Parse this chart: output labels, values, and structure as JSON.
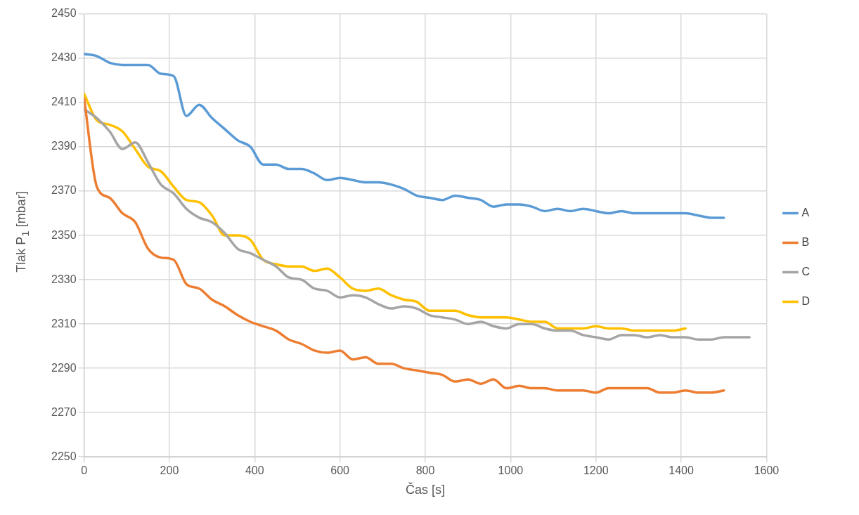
{
  "chart_data": {
    "type": "line",
    "xlabel": "Čas [s]",
    "ylabel": "Tlak P$_{1}$ [mbar]",
    "x": [
      0,
      30,
      60,
      90,
      120,
      150,
      180,
      210,
      240,
      270,
      300,
      330,
      360,
      390,
      420,
      450,
      480,
      510,
      540,
      570,
      600,
      630,
      660,
      690,
      720,
      750,
      780,
      810,
      840,
      870,
      900,
      930,
      960,
      990,
      1020,
      1050,
      1080,
      1110,
      1140,
      1170,
      1200,
      1230,
      1260,
      1290,
      1320,
      1350,
      1380,
      1410,
      1440,
      1470,
      1500,
      1530,
      1560
    ],
    "series": [
      {
        "name": "A",
        "color": "#5b9bd5",
        "values": [
          2432,
          2431,
          2428,
          2427,
          2427,
          2427,
          2423,
          2422,
          2404,
          2409,
          2403,
          2398,
          2393,
          2390,
          2382,
          2382,
          2380,
          2380,
          2378,
          2375,
          2376,
          2375,
          2374,
          2374,
          2373,
          2371,
          2368,
          2367,
          2366,
          2368,
          2367,
          2366,
          2363,
          2364,
          2364,
          2363,
          2361,
          2362,
          2361,
          2362,
          2361,
          2360,
          2361,
          2360,
          2360,
          2360,
          2360,
          2360,
          2359,
          2358,
          2358,
          null,
          null
        ]
      },
      {
        "name": "B",
        "color": "#ed7d31",
        "values": [
          2412,
          2372,
          2367,
          2360,
          2356,
          2344,
          2340,
          2339,
          2328,
          2326,
          2321,
          2318,
          2314,
          2311,
          2309,
          2307,
          2303,
          2301,
          2298,
          2297,
          2298,
          2294,
          2295,
          2292,
          2292,
          2290,
          2289,
          2288,
          2287,
          2284,
          2285,
          2283,
          2285,
          2281,
          2282,
          2281,
          2281,
          2280,
          2280,
          2280,
          2279,
          2281,
          2281,
          2281,
          2281,
          2279,
          2279,
          2280,
          2279,
          2279,
          2280,
          null,
          null
        ]
      },
      {
        "name": "C",
        "color": "#a5a5a5",
        "values": [
          2407,
          2403,
          2397,
          2389,
          2392,
          2383,
          2373,
          2369,
          2362,
          2358,
          2356,
          2351,
          2344,
          2342,
          2339,
          2336,
          2331,
          2330,
          2326,
          2325,
          2322,
          2323,
          2322,
          2319,
          2317,
          2318,
          2317,
          2314,
          2313,
          2312,
          2310,
          2311,
          2309,
          2308,
          2310,
          2310,
          2308,
          2307,
          2307,
          2305,
          2304,
          2303,
          2305,
          2305,
          2304,
          2305,
          2304,
          2304,
          2303,
          2303,
          2304,
          2304,
          2304
        ]
      },
      {
        "name": "D",
        "color": "#ffc000",
        "values": [
          2414,
          2402,
          2400,
          2397,
          2389,
          2381,
          2379,
          2372,
          2366,
          2365,
          2359,
          2350,
          2350,
          2348,
          2339,
          2337,
          2336,
          2336,
          2334,
          2335,
          2331,
          2326,
          2325,
          2326,
          2323,
          2321,
          2320,
          2316,
          2316,
          2316,
          2314,
          2313,
          2313,
          2313,
          2312,
          2311,
          2311,
          2308,
          2308,
          2308,
          2309,
          2308,
          2308,
          2307,
          2307,
          2307,
          2307,
          2308,
          null,
          null,
          null,
          null,
          null
        ]
      }
    ],
    "xlim": [
      0,
      1600
    ],
    "xticks": [
      0,
      200,
      400,
      600,
      800,
      1000,
      1200,
      1400,
      1600
    ],
    "ylim": [
      2250,
      2450
    ],
    "yticks": [
      2250,
      2270,
      2290,
      2310,
      2330,
      2350,
      2370,
      2390,
      2410,
      2430,
      2450
    ],
    "grid": true,
    "legend": "right",
    "marker": "none",
    "line_style": "solid"
  }
}
